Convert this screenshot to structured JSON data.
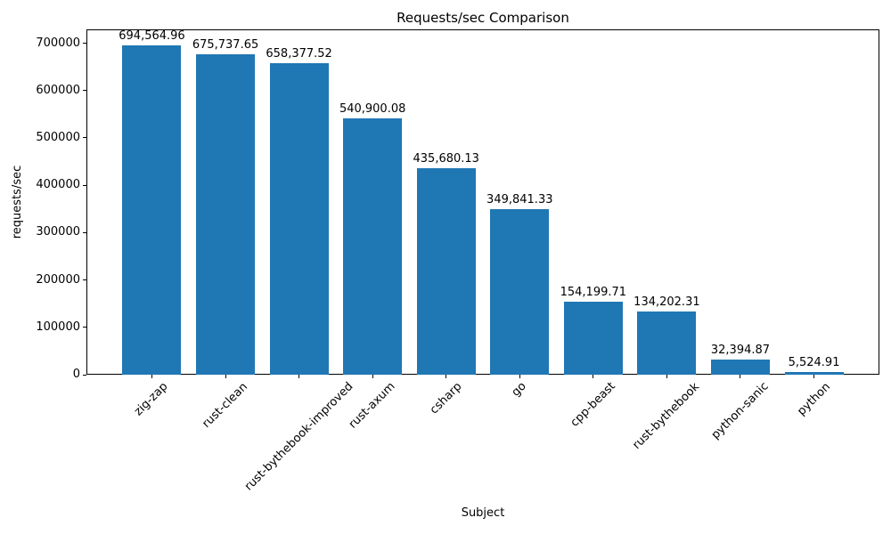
{
  "chart_data": {
    "type": "bar",
    "title": "Requests/sec Comparison",
    "xlabel": "Subject",
    "ylabel": "requests/sec",
    "categories": [
      "zig-zap",
      "rust-clean",
      "rust-bythebook-improved",
      "rust-axum",
      "csharp",
      "go",
      "cpp-beast",
      "rust-bythebook",
      "python-sanic",
      "python"
    ],
    "values": [
      694564.96,
      675737.65,
      658377.52,
      540900.08,
      435680.13,
      349841.33,
      154199.71,
      134202.31,
      32394.87,
      5524.91
    ],
    "value_labels": [
      "694,564.96",
      "675,737.65",
      "658,377.52",
      "540,900.08",
      "435,680.13",
      "349,841.33",
      "154,199.71",
      "134,202.31",
      "32,394.87",
      "5,524.91"
    ],
    "yticks": [
      0,
      100000,
      200000,
      300000,
      400000,
      500000,
      600000,
      700000
    ],
    "ytick_labels": [
      "0",
      "100000",
      "200000",
      "300000",
      "400000",
      "500000",
      "600000",
      "700000"
    ],
    "ylim": [
      0,
      729293
    ],
    "grid": false,
    "legend": "none",
    "bar_color": "#1f77b4",
    "text_color": "#000000",
    "spine_color": "#000000",
    "xtick_rotation_deg": 45
  }
}
